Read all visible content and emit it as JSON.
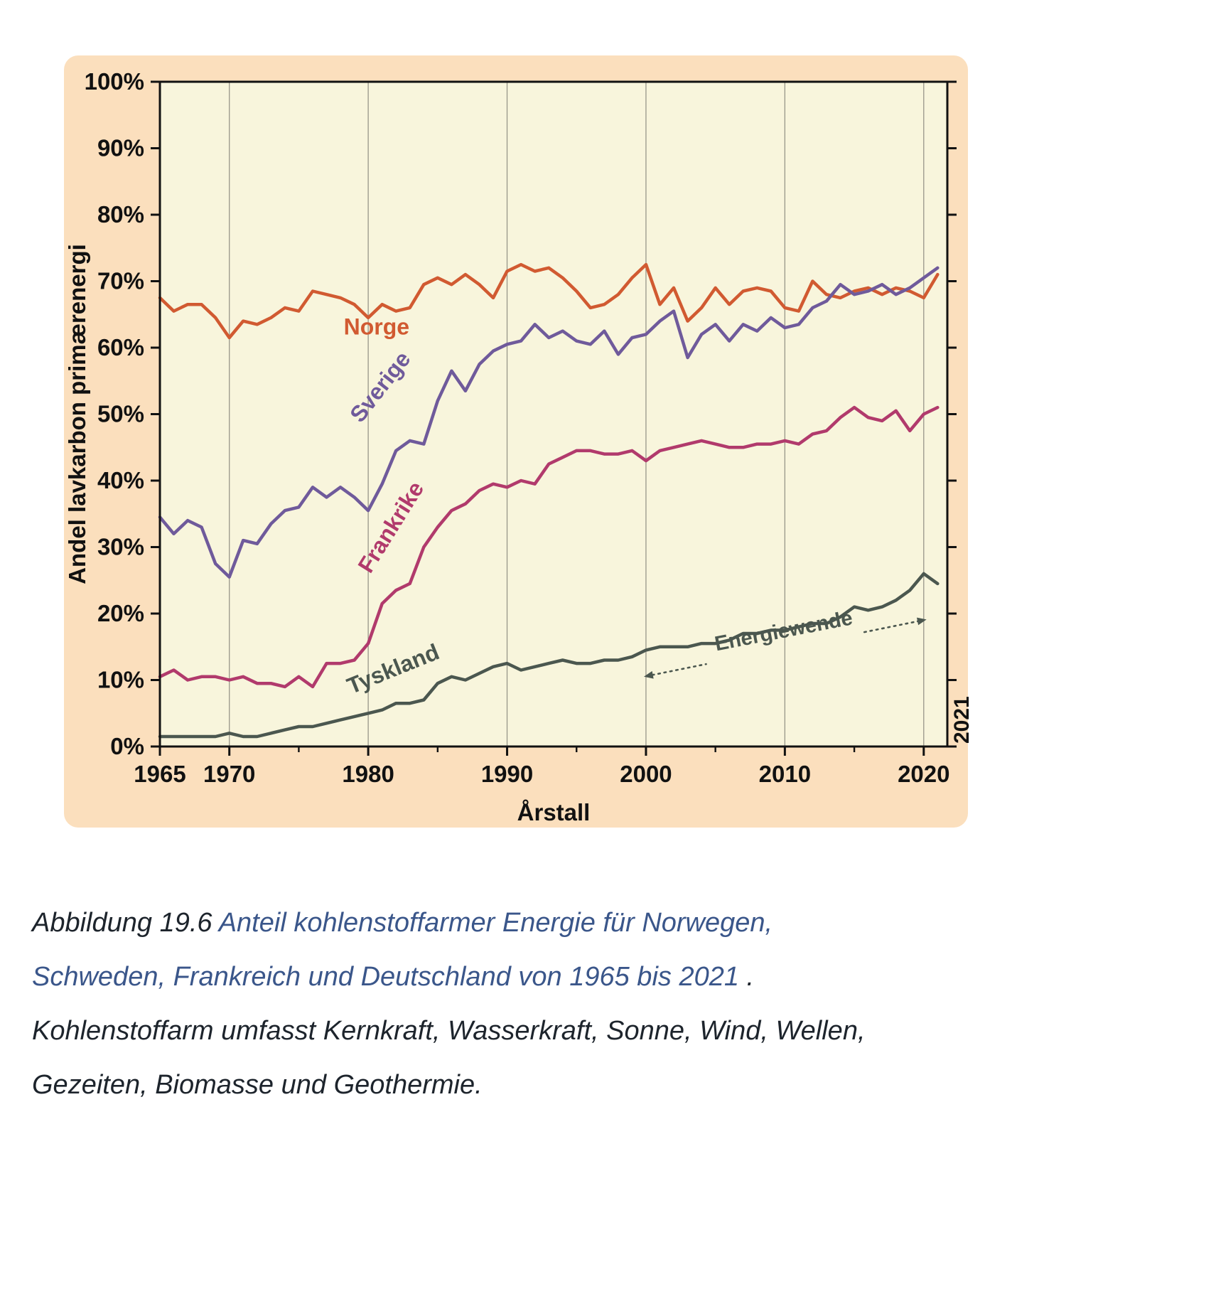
{
  "figure": {
    "panel_color": "#fbdfbd",
    "plot_background": "#f8f5dc"
  },
  "caption": {
    "text_color": "#1d242c",
    "link_color": "#3a568a",
    "line1_dark": "Abbildung 19.6 ",
    "line1_blue": "Anteil kohlenstoffarmer Energie für Norwegen,",
    "line2_blue": "Schweden, Frankreich und Deutschland von 1965 bis 2021",
    "line2_dark": " .",
    "line3": "Kohlenstoffarm umfasst Kernkraft, Wasserkraft, Sonne, Wind, Wellen,",
    "line4": "Gezeiten, Biomasse und Geothermie."
  },
  "chart_data": {
    "type": "line",
    "title": "",
    "xlabel": "Årstall",
    "ylabel": "Andel lavkarbon primærenergi",
    "xlim": [
      1965,
      2021.7
    ],
    "ylim": [
      0,
      100
    ],
    "y_ticks": [
      0,
      10,
      20,
      30,
      40,
      50,
      60,
      70,
      80,
      90,
      100
    ],
    "y_tick_suffix": "%",
    "x_ticks_labeled": [
      1965,
      1970,
      1980,
      1990,
      2000,
      2010,
      2020
    ],
    "x_ticks_minor": [
      1975,
      1985,
      1995,
      2005,
      2015
    ],
    "x_gridlines": [
      1970,
      1980,
      1990,
      2000,
      2010,
      2020
    ],
    "grid": "vertical gridlines at decades only",
    "legend_position": "inline series labels",
    "grid_color": "#98968a",
    "axis_color": "#111111",
    "years": [
      1965,
      1966,
      1967,
      1968,
      1969,
      1970,
      1971,
      1972,
      1973,
      1974,
      1975,
      1976,
      1977,
      1978,
      1979,
      1980,
      1981,
      1982,
      1983,
      1984,
      1985,
      1986,
      1987,
      1988,
      1989,
      1990,
      1991,
      1992,
      1993,
      1994,
      1995,
      1996,
      1997,
      1998,
      1999,
      2000,
      2001,
      2002,
      2003,
      2004,
      2005,
      2006,
      2007,
      2008,
      2009,
      2010,
      2011,
      2012,
      2013,
      2014,
      2015,
      2016,
      2017,
      2018,
      2019,
      2020,
      2021
    ],
    "series": [
      {
        "name": "Norge",
        "color": "#d15a31",
        "label": {
          "x": 1980.6,
          "y": 62,
          "rotate": 0
        },
        "values": [
          67.5,
          65.5,
          66.5,
          66.5,
          64.5,
          61.5,
          64,
          63.5,
          64.5,
          66,
          65.5,
          68.5,
          68,
          67.5,
          66.5,
          64.5,
          66.5,
          65.5,
          66,
          69.5,
          70.5,
          69.5,
          71,
          69.5,
          67.5,
          71.5,
          72.5,
          71.5,
          72,
          70.5,
          68.5,
          66,
          66.5,
          68,
          70.5,
          72.5,
          66.5,
          69,
          64,
          66,
          69,
          66.5,
          68.5,
          69,
          68.5,
          66,
          65.5,
          70,
          68,
          67.5,
          68.5,
          69,
          68,
          69,
          68.5,
          67.5,
          71
        ]
      },
      {
        "name": "Sverige",
        "color": "#6f5a9b",
        "label": {
          "x": 1981.3,
          "y": 53.4,
          "rotate": -52
        },
        "values": [
          34.5,
          32,
          34,
          33,
          27.5,
          25.5,
          31,
          30.5,
          33.5,
          35.5,
          36,
          39,
          37.5,
          39,
          37.5,
          35.5,
          39.5,
          44.5,
          46,
          45.5,
          52,
          56.5,
          53.5,
          57.5,
          59.5,
          60.5,
          61,
          63.5,
          61.5,
          62.5,
          61,
          60.5,
          62.5,
          59,
          61.5,
          62,
          64,
          65.5,
          58.5,
          62,
          63.5,
          61,
          63.5,
          62.5,
          64.5,
          63,
          63.5,
          66,
          67,
          69.5,
          68,
          68.5,
          69.5,
          68,
          69,
          70.5,
          72
        ]
      },
      {
        "name": "Frankrike",
        "color": "#b13a6c",
        "label": {
          "x": 1982.1,
          "y": 32.4,
          "rotate": -58
        },
        "values": [
          10.5,
          11.5,
          10,
          10.5,
          10.5,
          10,
          10.5,
          9.5,
          9.5,
          9,
          10.5,
          9,
          12.5,
          12.5,
          13,
          15.5,
          21.5,
          23.5,
          24.5,
          30,
          33,
          35.5,
          36.5,
          38.5,
          39.5,
          39,
          40,
          39.5,
          42.5,
          43.5,
          44.5,
          44.5,
          44,
          44,
          44.5,
          43,
          44.5,
          45,
          45.5,
          46,
          45.5,
          45,
          45,
          45.5,
          45.5,
          46,
          45.5,
          47,
          47.5,
          49.5,
          51,
          49.5,
          49,
          50.5,
          47.5,
          50,
          51
        ]
      },
      {
        "name": "Tyskland",
        "color": "#4b574f",
        "label": {
          "x": 1982.0,
          "y": 10.6,
          "rotate": -22
        },
        "values": [
          1.5,
          1.5,
          1.5,
          1.5,
          1.5,
          2,
          1.5,
          1.5,
          2,
          2.5,
          3,
          3,
          3.5,
          4,
          4.5,
          5,
          5.5,
          6.5,
          6.5,
          7,
          9.5,
          10.5,
          10,
          11,
          12,
          12.5,
          11.5,
          12,
          12.5,
          13,
          12.5,
          12.5,
          13,
          13,
          13.5,
          14.5,
          15,
          15,
          15,
          15.5,
          15.5,
          16,
          17,
          17,
          17.5,
          17.5,
          18,
          18.5,
          18.5,
          19.5,
          21,
          20.5,
          21,
          22,
          23.5,
          26,
          24.5
        ]
      }
    ],
    "annotation": {
      "text": "Energiewende",
      "color": "#4b574f",
      "arrow": {
        "x1": 1999.85,
        "y1": 10.5,
        "x2": 2020.2,
        "y2": 19.1
      },
      "label": {
        "x": 2010.0,
        "y": 16.4,
        "rotate": -11
      }
    },
    "right_edge_label": "2021"
  }
}
